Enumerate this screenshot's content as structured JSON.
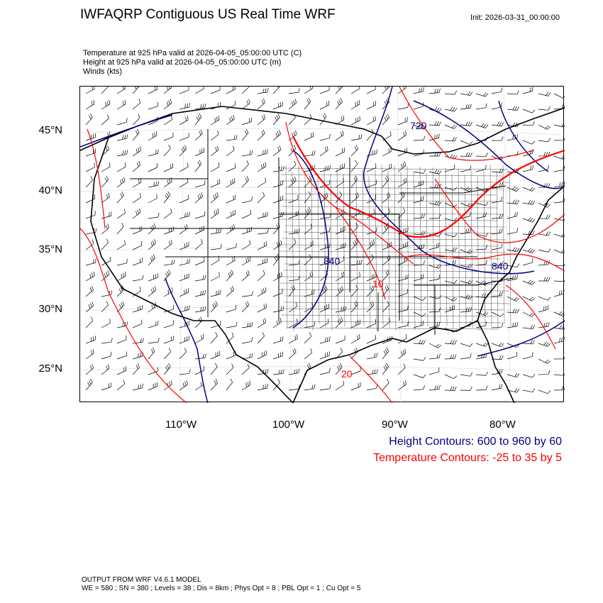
{
  "title": "IWFAQRP Contiguous US Real Time WRF",
  "init": "Init: 2026-03-31_00:00:00",
  "fields": [
    "Temperature at 925 hPa valid at 2026-04-05_05:00:00 UTC   (C)",
    "Height at 925 hPa valid at 2026-04-05_05:00:00 UTC   (m)",
    "Winds   (kts)"
  ],
  "lat_labels": [
    "45°N",
    "40°N",
    "35°N",
    "30°N",
    "25°N"
  ],
  "lon_labels": [
    "110°W",
    "100°W",
    "90°W",
    "80°W"
  ],
  "contour_labels": {
    "height": [
      "720",
      "840",
      "840"
    ],
    "temperature": [
      "10",
      "20"
    ]
  },
  "legend": {
    "height": "Height Contours: 600 to 960 by 60",
    "temperature": "Temperature Contours: -25 to 35 by 5"
  },
  "colors": {
    "height": "#00007f",
    "temperature": "#ff0000",
    "borders": "#000000",
    "barbs": "#000000"
  },
  "footer": {
    "line1": "OUTPUT FROM WRF V4.6.1 MODEL",
    "line2": "WE = 580 ; SN = 380 ; Levels = 38 ; Dis = 8km ; Phys Opt = 8 ; PBL Opt = 1 ; Cu Opt = 5"
  }
}
